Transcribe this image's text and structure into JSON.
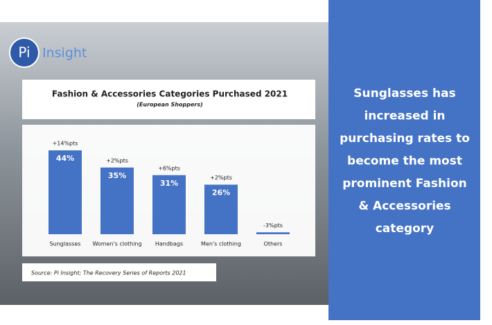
{
  "logo": {
    "mark": "Pi",
    "word": "Insight"
  },
  "chart_data": {
    "type": "bar",
    "title": "Fashion & Accessories Categories Purchased 2021",
    "subtitle": "(European Shoppers)",
    "categories": [
      "Sunglasses",
      "Women's clothing",
      "Handbags",
      "Men's clothing",
      "Others"
    ],
    "values": [
      44,
      35,
      31,
      26,
      1
    ],
    "value_labels": [
      "44%",
      "35%",
      "31%",
      "26%",
      null
    ],
    "annotations": [
      "+14%pts",
      "+2%pts",
      "+6%pts",
      "+2%pts",
      "-3%pts"
    ],
    "color": "#4472c4",
    "source": "Source: Pi Insight; The Recovery Series of Reports 2021"
  },
  "callout": [
    "Sunglasses has",
    "increased in",
    "purchasing rates to",
    "become the most",
    "prominent Fashion",
    "& Accessories",
    "category"
  ]
}
